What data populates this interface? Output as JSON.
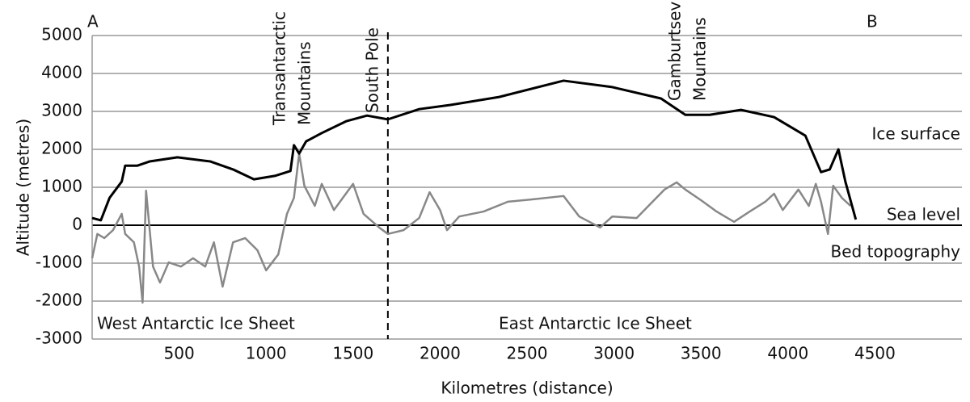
{
  "chart_data": {
    "type": "line",
    "x_label": "Kilometres (distance)",
    "y_label": "Altitude (metres)",
    "xlim": [
      0,
      5000
    ],
    "xticks": [
      500,
      1000,
      1500,
      2000,
      2500,
      3000,
      3500,
      4000,
      4500
    ],
    "ylim": [
      -3000,
      5000
    ],
    "yticks": [
      -3000,
      -2000,
      -1000,
      0,
      1000,
      2000,
      3000,
      4000,
      5000
    ],
    "grid": true,
    "marker_x": 1700,
    "annotations": [
      "A",
      "B",
      "Transantarctic",
      "Mountains",
      "South Pole",
      "Gamburtsev",
      "Mountains",
      "Sea level",
      "West Antarctic Ice Sheet",
      "East Antarctic Ice Sheet"
    ],
    "series": [
      {
        "name": "Ice surface",
        "color": "#000000",
        "x": [
          0,
          50,
          100,
          170,
          190,
          260,
          330,
          490,
          680,
          810,
          930,
          1050,
          1140,
          1160,
          1190,
          1230,
          1320,
          1460,
          1580,
          1700,
          1880,
          2060,
          2340,
          2710,
          2990,
          3270,
          3410,
          3550,
          3730,
          3920,
          4100,
          4190,
          4240,
          4290,
          4330,
          4390
        ],
        "values": [
          190,
          130,
          720,
          1150,
          1570,
          1570,
          1680,
          1790,
          1680,
          1470,
          1210,
          1300,
          1430,
          2110,
          1890,
          2210,
          2430,
          2740,
          2890,
          2790,
          3060,
          3170,
          3380,
          3810,
          3640,
          3340,
          2910,
          2910,
          3040,
          2850,
          2360,
          1400,
          1470,
          2000,
          1150,
          150
        ]
      },
      {
        "name": "Bed topography",
        "color": "#888888",
        "x": [
          0,
          30,
          70,
          120,
          170,
          190,
          240,
          270,
          290,
          310,
          350,
          390,
          440,
          510,
          580,
          650,
          700,
          750,
          810,
          880,
          950,
          1000,
          1070,
          1120,
          1160,
          1190,
          1220,
          1280,
          1320,
          1390,
          1500,
          1560,
          1650,
          1700,
          1790,
          1880,
          1940,
          2000,
          2040,
          2110,
          2250,
          2390,
          2530,
          2710,
          2800,
          2920,
          2990,
          3130,
          3290,
          3360,
          3410,
          3500,
          3590,
          3690,
          3780,
          3870,
          3920,
          3970,
          4060,
          4120,
          4160,
          4190,
          4230,
          4260,
          4310,
          4360
        ],
        "values": [
          -870,
          -230,
          -340,
          -130,
          300,
          -230,
          -450,
          -1090,
          -2040,
          910,
          -1090,
          -1510,
          -980,
          -1090,
          -870,
          -1090,
          -450,
          -1620,
          -450,
          -340,
          -660,
          -1190,
          -770,
          300,
          720,
          1890,
          1040,
          510,
          1090,
          400,
          1090,
          300,
          -60,
          -230,
          -130,
          190,
          870,
          400,
          -130,
          230,
          360,
          620,
          680,
          770,
          230,
          -60,
          230,
          190,
          940,
          1130,
          940,
          660,
          360,
          90,
          360,
          620,
          830,
          400,
          940,
          510,
          1090,
          620,
          -230,
          1040,
          720,
          510
        ]
      }
    ]
  }
}
